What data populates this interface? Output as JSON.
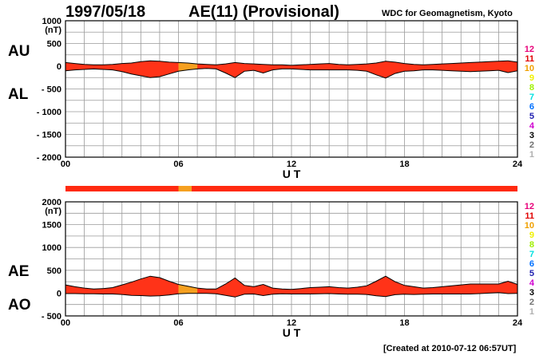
{
  "header": {
    "date": "1997/05/18",
    "title": "AE(11) (Provisional)",
    "source": "WDC for Geomagnetism, Kyoto",
    "created": "[Created at 2010-07-12 06:57UT]"
  },
  "level_legend": [
    {
      "label": "12",
      "color": "#e8007a"
    },
    {
      "label": "11",
      "color": "#e00000"
    },
    {
      "label": "10",
      "color": "#f0a000"
    },
    {
      "label": "9",
      "color": "#f0f000"
    },
    {
      "label": "8",
      "color": "#a0f000"
    },
    {
      "label": "7",
      "color": "#00e0e0"
    },
    {
      "label": "6",
      "color": "#0070ff"
    },
    {
      "label": "5",
      "color": "#2020b0"
    },
    {
      "label": "4",
      "color": "#d000d0"
    },
    {
      "label": "3",
      "color": "#000000"
    },
    {
      "label": "2",
      "color": "#707070"
    },
    {
      "label": "1",
      "color": "#b0b0b0"
    }
  ],
  "chart_data": [
    {
      "type": "area",
      "unit": "(nT)",
      "xlabel": "U T",
      "x_ticks": [
        "00",
        "06",
        "12",
        "18",
        "24"
      ],
      "xlim": [
        0,
        24
      ],
      "ylim": [
        -2000,
        1000
      ],
      "y_ticks": [
        1000,
        500,
        0,
        -500,
        -1000,
        -1500,
        -2000
      ],
      "y_tick_labels": [
        "1000",
        "500",
        "0",
        "- 500",
        "- 1000",
        "- 1500",
        "- 2000"
      ],
      "side_labels": {
        "upper": "AU",
        "lower": "AL"
      },
      "fill_color": "#ff3318",
      "highlight": {
        "from": 6.0,
        "to": 6.7,
        "color": "#f5a020"
      },
      "hours": [
        0,
        0.5,
        1,
        1.5,
        2,
        2.5,
        3,
        3.5,
        4,
        4.5,
        5,
        5.5,
        6,
        6.5,
        7,
        7.5,
        8,
        8.5,
        9,
        9.5,
        10,
        10.5,
        11,
        11.5,
        12,
        12.5,
        13,
        13.5,
        14,
        14.5,
        15,
        15.5,
        16,
        16.5,
        17,
        17.5,
        18,
        18.5,
        19,
        19.5,
        20,
        20.5,
        21,
        21.5,
        22,
        22.5,
        23,
        23.5,
        24
      ],
      "series": [
        {
          "name": "AU",
          "values": [
            80,
            60,
            40,
            30,
            30,
            40,
            60,
            70,
            100,
            120,
            110,
            90,
            80,
            70,
            50,
            40,
            30,
            50,
            80,
            60,
            50,
            40,
            30,
            30,
            20,
            30,
            40,
            50,
            60,
            40,
            30,
            40,
            50,
            70,
            110,
            90,
            60,
            40,
            30,
            40,
            50,
            60,
            70,
            80,
            90,
            100,
            110,
            120,
            90
          ]
        },
        {
          "name": "AL",
          "values": [
            -100,
            -80,
            -70,
            -60,
            -70,
            -80,
            -120,
            -170,
            -210,
            -250,
            -230,
            -170,
            -110,
            -80,
            -60,
            -50,
            -60,
            -150,
            -250,
            -110,
            -90,
            -150,
            -80,
            -60,
            -60,
            -70,
            -80,
            -80,
            -80,
            -80,
            -80,
            -90,
            -110,
            -190,
            -260,
            -160,
            -110,
            -100,
            -80,
            -80,
            -90,
            -100,
            -110,
            -120,
            -110,
            -100,
            -90,
            -140,
            -100
          ]
        }
      ]
    },
    {
      "type": "area",
      "unit": "(nT)",
      "xlabel": "U T",
      "x_ticks": [
        "00",
        "06",
        "12",
        "18",
        "24"
      ],
      "xlim": [
        0,
        24
      ],
      "ylim": [
        -500,
        2000
      ],
      "y_ticks": [
        2000,
        1500,
        1000,
        500,
        0,
        -500
      ],
      "y_tick_labels": [
        "2000",
        "1500",
        "1000",
        "500",
        "0",
        "- 500"
      ],
      "side_labels": {
        "upper": "AE",
        "lower": "AO"
      },
      "fill_color": "#ff3318",
      "highlight": {
        "from": 6.0,
        "to": 6.7,
        "color": "#f5a020"
      },
      "hours": [
        0,
        0.5,
        1,
        1.5,
        2,
        2.5,
        3,
        3.5,
        4,
        4.5,
        5,
        5.5,
        6,
        6.5,
        7,
        7.5,
        8,
        8.5,
        9,
        9.5,
        10,
        10.5,
        11,
        11.5,
        12,
        12.5,
        13,
        13.5,
        14,
        14.5,
        15,
        15.5,
        16,
        16.5,
        17,
        17.5,
        18,
        18.5,
        19,
        19.5,
        20,
        20.5,
        21,
        21.5,
        22,
        22.5,
        23,
        23.5,
        24
      ],
      "series": [
        {
          "name": "AE",
          "values": [
            180,
            140,
            110,
            90,
            100,
            120,
            180,
            240,
            310,
            370,
            340,
            260,
            190,
            150,
            110,
            90,
            90,
            200,
            330,
            170,
            140,
            190,
            110,
            90,
            80,
            100,
            120,
            130,
            140,
            120,
            110,
            130,
            160,
            260,
            370,
            250,
            170,
            140,
            110,
            120,
            140,
            160,
            180,
            200,
            200,
            200,
            200,
            260,
            190
          ]
        },
        {
          "name": "AO",
          "values": [
            -10,
            -10,
            -15,
            -15,
            -20,
            -20,
            -30,
            -50,
            -55,
            -65,
            -60,
            -40,
            -15,
            -5,
            -5,
            -5,
            -15,
            -50,
            -85,
            -25,
            -20,
            -55,
            -25,
            -15,
            -20,
            -20,
            -20,
            -15,
            -10,
            -20,
            -25,
            -25,
            -30,
            -60,
            -75,
            -35,
            -25,
            -30,
            -25,
            -20,
            -20,
            -20,
            -20,
            -20,
            -10,
            0,
            10,
            -10,
            -5
          ]
        }
      ]
    }
  ],
  "level_strip": {
    "color": "#ff2a10",
    "highlight": {
      "from": 6.0,
      "to": 6.7,
      "color": "#f5a020"
    }
  }
}
